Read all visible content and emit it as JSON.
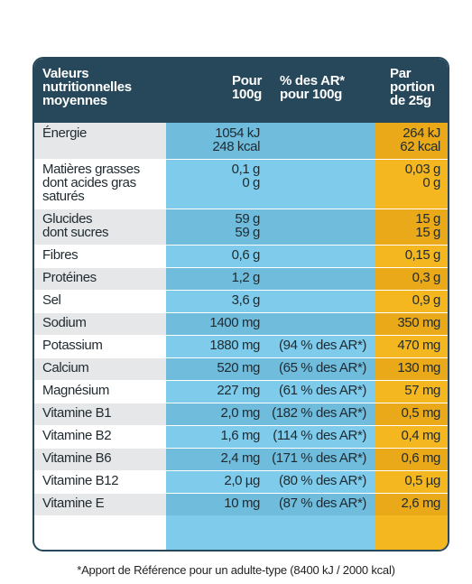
{
  "header": {
    "name": [
      "Valeurs",
      "nutritionnelles",
      "moyennes"
    ],
    "per100": [
      "Pour",
      "100g"
    ],
    "ar": [
      "% des AR*",
      "pour 100g"
    ],
    "portion": [
      "Par",
      "portion",
      "de 25g"
    ]
  },
  "rows": [
    {
      "name": [
        "Énergie"
      ],
      "per100": [
        "1054 kJ",
        "248 kcal"
      ],
      "ar": [],
      "portion": [
        "264 kJ",
        "62 kcal"
      ]
    },
    {
      "name": [
        "Matières grasses",
        "dont acides gras",
        "saturés"
      ],
      "per100": [
        "0,1 g",
        "0 g"
      ],
      "ar": [],
      "portion": [
        "0,03 g",
        "0 g"
      ]
    },
    {
      "name": [
        "Glucides",
        "dont sucres"
      ],
      "per100": [
        "59 g",
        "59 g"
      ],
      "ar": [],
      "portion": [
        "15 g",
        "15 g"
      ]
    },
    {
      "name": [
        "Fibres"
      ],
      "per100": [
        "0,6 g"
      ],
      "ar": [],
      "portion": [
        "0,15 g"
      ]
    },
    {
      "name": [
        "Protéines"
      ],
      "per100": [
        "1,2 g"
      ],
      "ar": [],
      "portion": [
        "0,3 g"
      ]
    },
    {
      "name": [
        "Sel"
      ],
      "per100": [
        "3,6 g"
      ],
      "ar": [],
      "portion": [
        "0,9 g"
      ]
    },
    {
      "name": [
        "Sodium"
      ],
      "per100": [
        "1400 mg"
      ],
      "ar": [],
      "portion": [
        "350 mg"
      ]
    },
    {
      "name": [
        "Potassium"
      ],
      "per100": [
        "1880 mg"
      ],
      "ar": [
        "(94 % des AR*)"
      ],
      "portion": [
        "470 mg"
      ]
    },
    {
      "name": [
        "Calcium"
      ],
      "per100": [
        "520 mg"
      ],
      "ar": [
        "(65 % des AR*)"
      ],
      "portion": [
        "130 mg"
      ]
    },
    {
      "name": [
        "Magnésium"
      ],
      "per100": [
        "227 mg"
      ],
      "ar": [
        "(61 % des AR*)"
      ],
      "portion": [
        "57 mg"
      ]
    },
    {
      "name": [
        "Vitamine B1"
      ],
      "per100": [
        "2,0 mg"
      ],
      "ar": [
        "(182 % des AR*)"
      ],
      "portion": [
        "0,5 mg"
      ]
    },
    {
      "name": [
        "Vitamine B2"
      ],
      "per100": [
        "1,6 mg"
      ],
      "ar": [
        "(114 % des AR*)"
      ],
      "portion": [
        "0,4 mg"
      ]
    },
    {
      "name": [
        "Vitamine B6"
      ],
      "per100": [
        "2,4 mg"
      ],
      "ar": [
        "(171 % des AR*)"
      ],
      "portion": [
        "0,6 mg"
      ]
    },
    {
      "name": [
        "Vitamine B12"
      ],
      "per100": [
        "2,0 µg"
      ],
      "ar": [
        "(80 % des AR*)"
      ],
      "portion": [
        "0,5 µg"
      ]
    },
    {
      "name": [
        "Vitamine E"
      ],
      "per100": [
        "10 mg"
      ],
      "ar": [
        "(87 % des AR*)"
      ],
      "portion": [
        "2,6 mg"
      ]
    }
  ],
  "footnote": "*Apport de Référence pour un adulte-type (8400 kJ / 2000 kcal)",
  "colors": {
    "header": "#26485a",
    "blue": "#7ecbeb",
    "blue_shade": "#6fbcdd",
    "orange": "#f5b720",
    "orange_shade": "#e9a919",
    "grey_shade": "#e6e7e8"
  }
}
